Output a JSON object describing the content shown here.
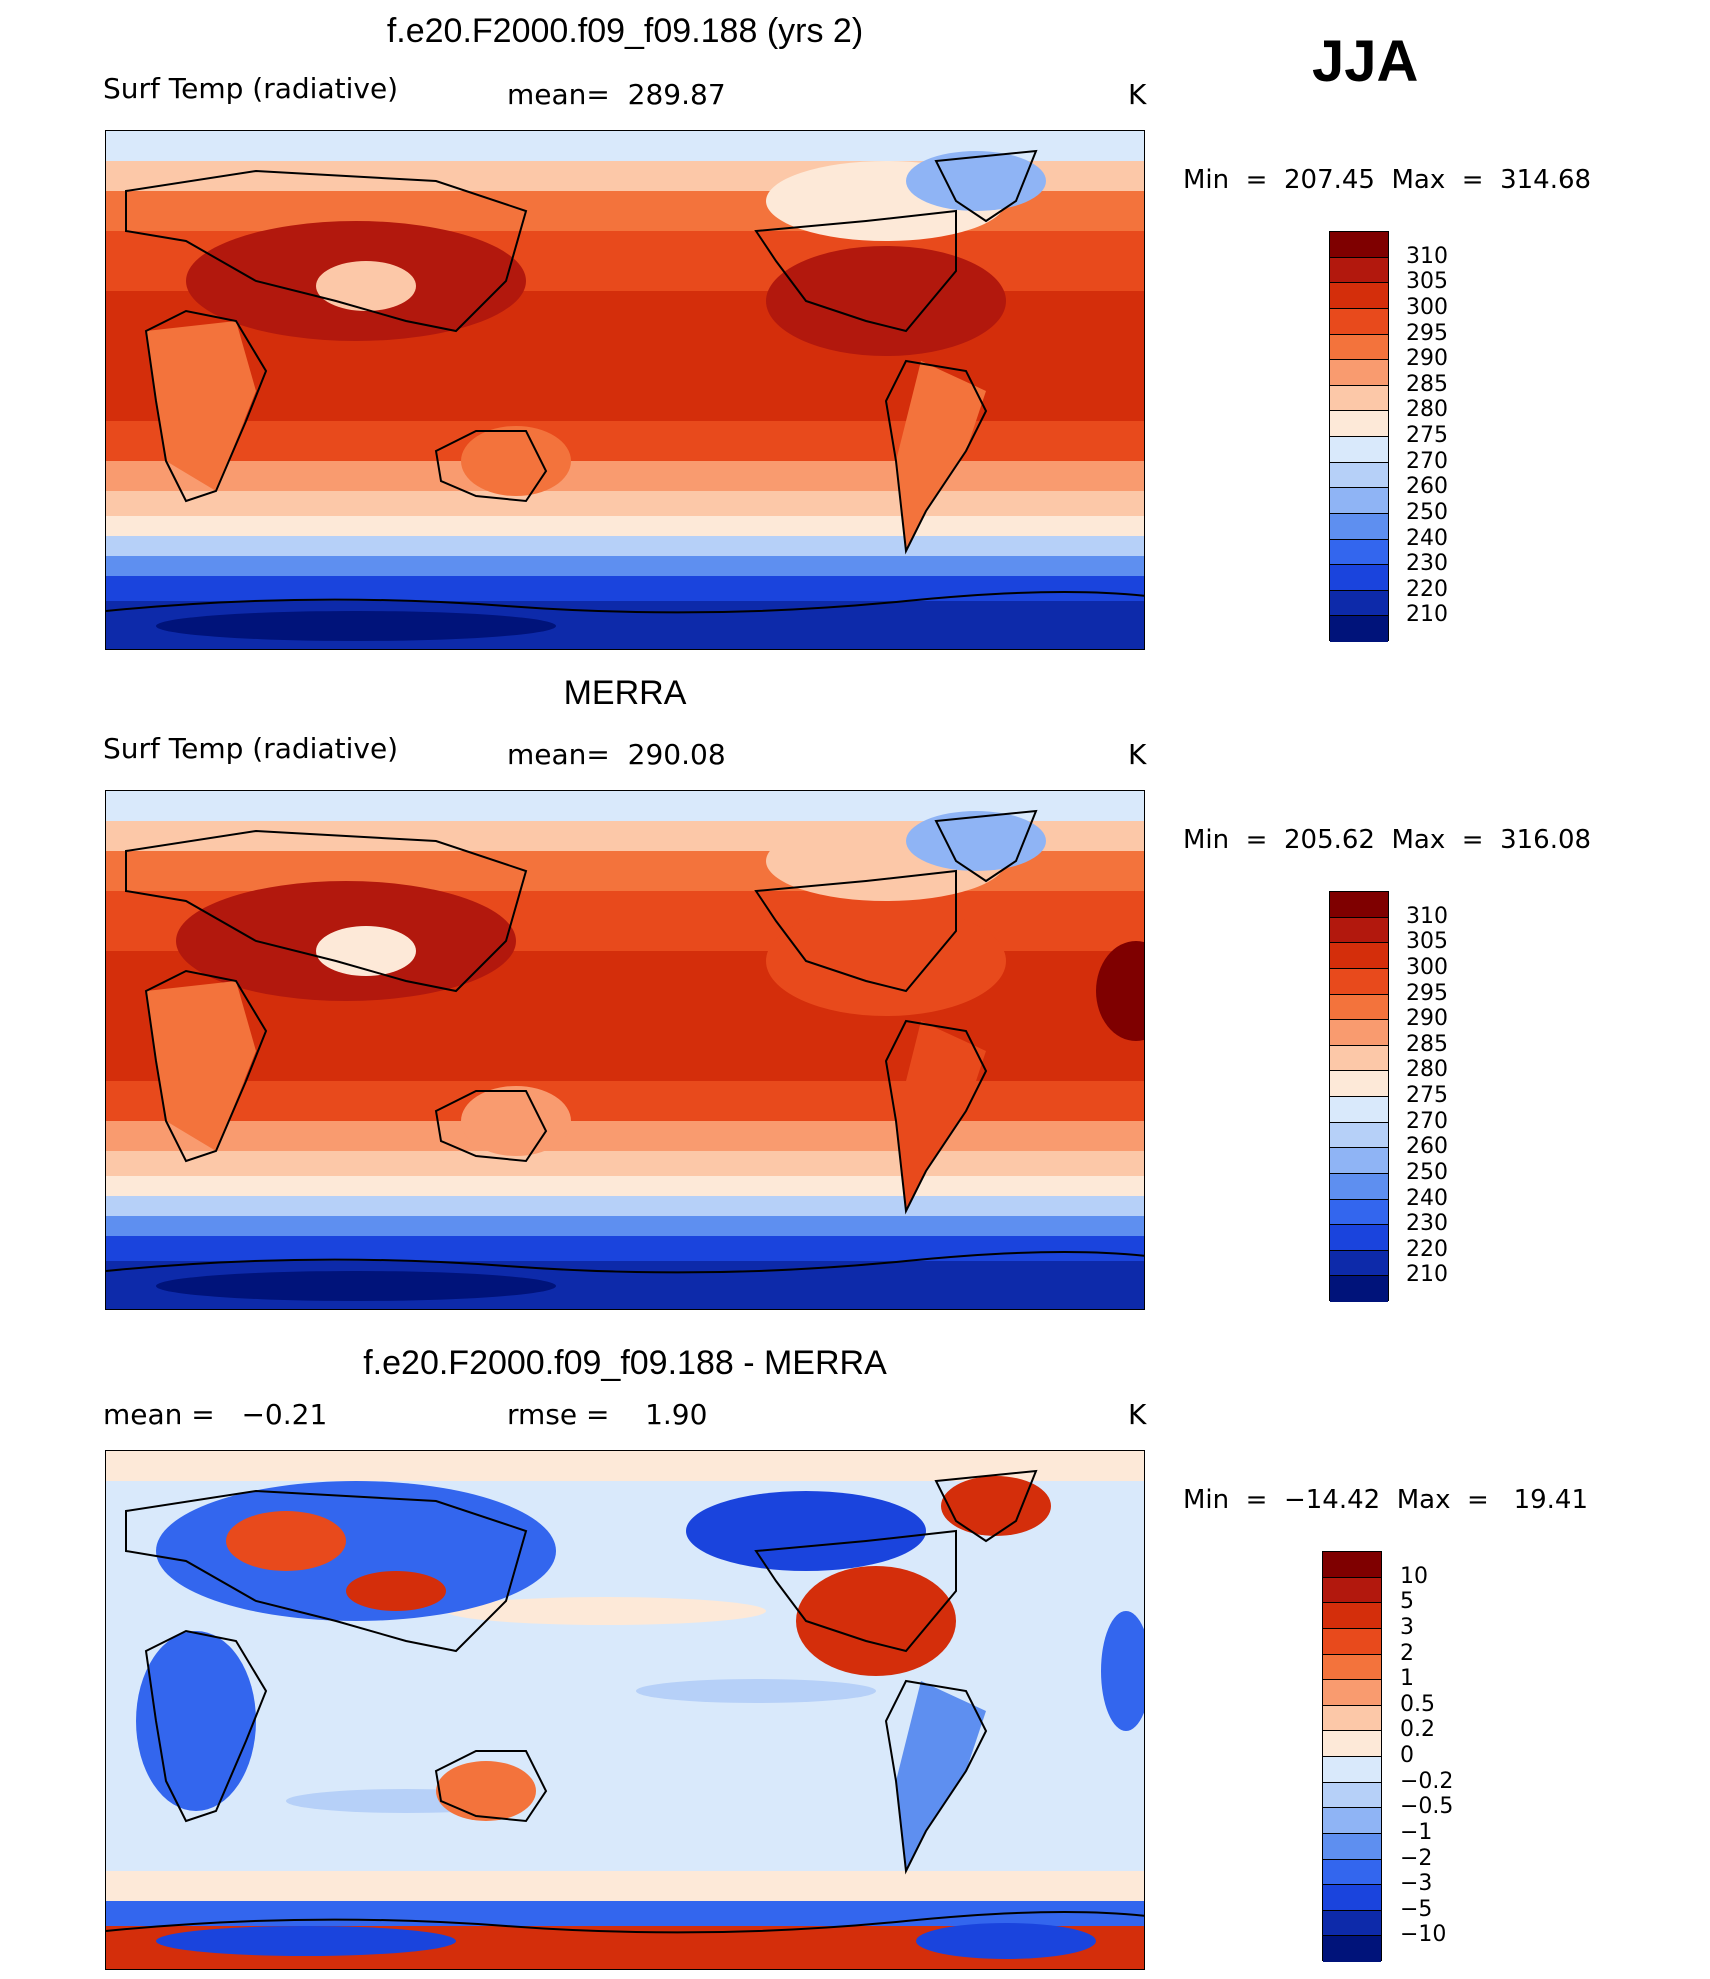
{
  "season": "JJA",
  "panels": [
    {
      "title": "f.e20.F2000.f09_f09.188 (yrs 2)",
      "left_label": "Surf Temp (radiative)",
      "center_label": "mean=  289.87",
      "units": "K",
      "minmax": "Min  =  207.45  Max  =  314.68",
      "kind": "abs",
      "colorbar": {
        "labels": [
          "310",
          "305",
          "300",
          "295",
          "290",
          "285",
          "280",
          "275",
          "270",
          "260",
          "250",
          "240",
          "230",
          "220",
          "210"
        ],
        "colors": [
          "#7f0000",
          "#b2180d",
          "#d42e0b",
          "#e84a1c",
          "#f3733c",
          "#f99b6f",
          "#fcc8a8",
          "#fde9d8",
          "#d9e9fb",
          "#b6d0f8",
          "#8fb4f5",
          "#5e8ff0",
          "#3366ee",
          "#1a44dd",
          "#0d2aaa",
          "#00137a"
        ]
      }
    },
    {
      "title": "MERRA",
      "left_label": "Surf Temp (radiative)",
      "center_label": "mean=  290.08",
      "units": "K",
      "minmax": "Min  =  205.62  Max  =  316.08",
      "kind": "abs",
      "colorbar": {
        "labels": [
          "310",
          "305",
          "300",
          "295",
          "290",
          "285",
          "280",
          "275",
          "270",
          "260",
          "250",
          "240",
          "230",
          "220",
          "210"
        ],
        "colors": [
          "#7f0000",
          "#b2180d",
          "#d42e0b",
          "#e84a1c",
          "#f3733c",
          "#f99b6f",
          "#fcc8a8",
          "#fde9d8",
          "#d9e9fb",
          "#b6d0f8",
          "#8fb4f5",
          "#5e8ff0",
          "#3366ee",
          "#1a44dd",
          "#0d2aaa",
          "#00137a"
        ]
      }
    },
    {
      "title": "f.e20.F2000.f09_f09.188 - MERRA",
      "left_label": "mean =   −0.21",
      "center_label": "rmse =    1.90",
      "units": "K",
      "minmax": "Min  =  −14.42  Max  =   19.41",
      "kind": "diff",
      "colorbar": {
        "labels": [
          "10",
          "5",
          "3",
          "2",
          "1",
          "0.5",
          "0.2",
          "0",
          "−0.2",
          "−0.5",
          "−1",
          "−2",
          "−3",
          "−5",
          "−10"
        ],
        "colors": [
          "#7f0000",
          "#b2180d",
          "#d42e0b",
          "#e84a1c",
          "#f3733c",
          "#f99b6f",
          "#fcc8a8",
          "#fde9d8",
          "#d9e9fb",
          "#b6d0f8",
          "#8fb4f5",
          "#5e8ff0",
          "#3366ee",
          "#1a44dd",
          "#0d2aaa",
          "#00137a"
        ]
      }
    }
  ]
}
